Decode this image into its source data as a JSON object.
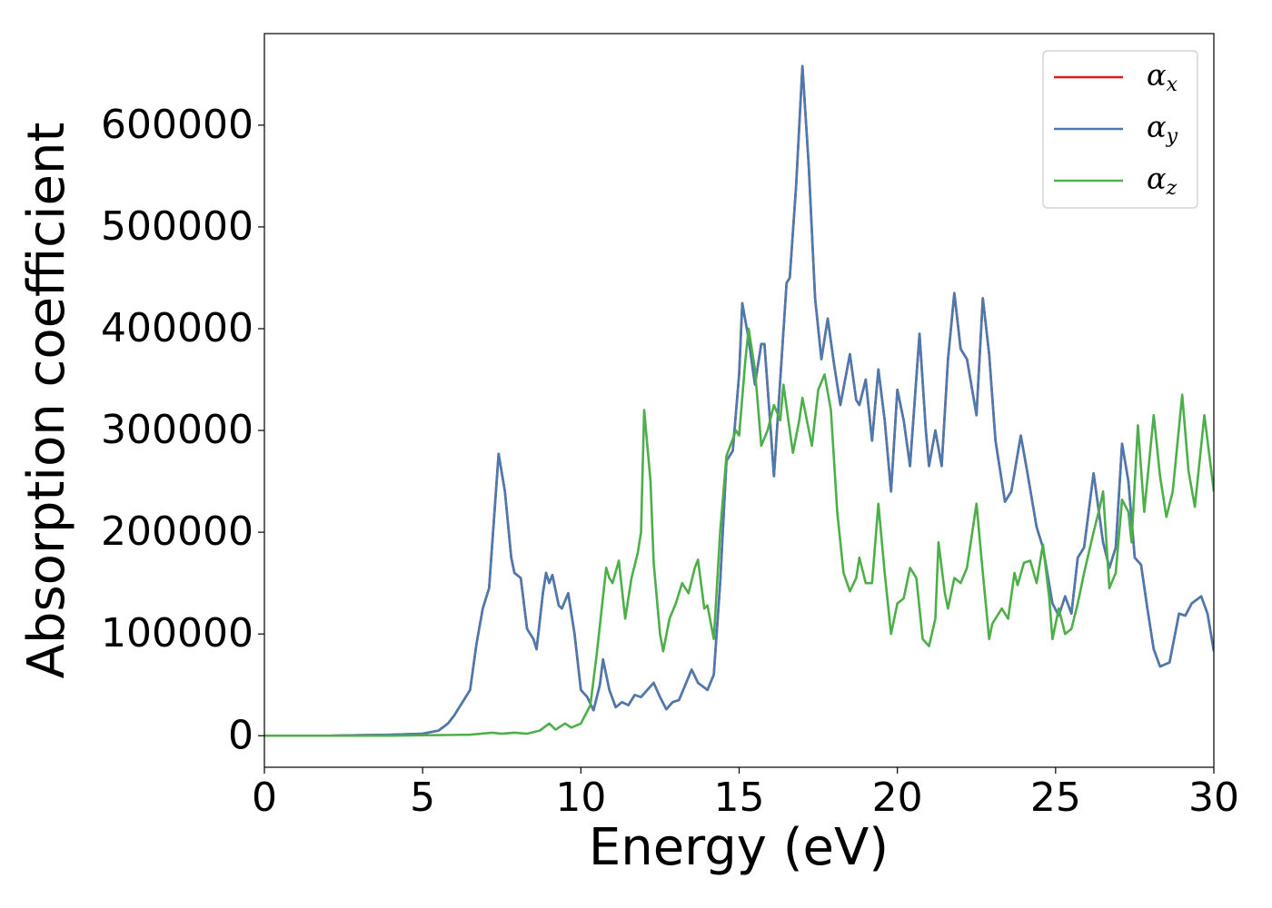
{
  "chart_data": {
    "type": "line",
    "x_label": "Energy (eV)",
    "y_label": "Absorption coefficient",
    "xlim": [
      0,
      30
    ],
    "xticks": [
      0,
      5,
      10,
      15,
      20,
      25,
      30
    ],
    "ylim": [
      -31000,
      690000
    ],
    "yticks": [
      0,
      100000,
      200000,
      300000,
      400000,
      500000,
      600000
    ],
    "grid": false,
    "legend": "upper right",
    "series": [
      {
        "name": "αx",
        "color": "#e41a1c",
        "x": [
          0,
          1,
          2,
          3,
          4,
          5,
          5.5,
          5.8,
          6.0,
          6.3,
          6.5,
          6.7,
          6.9,
          7.1,
          7.4,
          7.6,
          7.8,
          7.9,
          8.1,
          8.3,
          8.5,
          8.6,
          8.8,
          8.9,
          9.0,
          9.1,
          9.3,
          9.4,
          9.6,
          9.8,
          10.0,
          10.2,
          10.4,
          10.6,
          10.7,
          10.9,
          11.1,
          11.3,
          11.5,
          11.7,
          11.9,
          12.1,
          12.3,
          12.5,
          12.7,
          12.9,
          13.1,
          13.3,
          13.5,
          13.7,
          14.0,
          14.2,
          14.4,
          14.6,
          14.8,
          15.0,
          15.1,
          15.3,
          15.5,
          15.7,
          15.8,
          16.0,
          16.1,
          16.3,
          16.5,
          16.6,
          16.8,
          17.0,
          17.2,
          17.4,
          17.6,
          17.8,
          18.0,
          18.2,
          18.5,
          18.7,
          18.8,
          19.0,
          19.2,
          19.4,
          19.6,
          19.8,
          20.0,
          20.2,
          20.4,
          20.7,
          20.9,
          21.0,
          21.2,
          21.4,
          21.6,
          21.8,
          22.0,
          22.2,
          22.5,
          22.7,
          22.9,
          23.1,
          23.4,
          23.6,
          23.9,
          24.1,
          24.4,
          24.6,
          24.9,
          25.1,
          25.3,
          25.5,
          25.7,
          25.9,
          26.2,
          26.5,
          26.7,
          26.9,
          27.1,
          27.3,
          27.5,
          27.7,
          27.9,
          28.1,
          28.3,
          28.6,
          28.9,
          29.1,
          29.3,
          29.6,
          29.8,
          30.0
        ],
        "values": [
          0,
          0,
          0,
          500,
          1000,
          2000,
          5000,
          12000,
          20000,
          35000,
          45000,
          90000,
          125000,
          145000,
          277000,
          240000,
          175000,
          160000,
          155000,
          105000,
          95000,
          85000,
          140000,
          160000,
          150000,
          158000,
          128000,
          125000,
          140000,
          100000,
          45000,
          38000,
          25000,
          50000,
          75000,
          45000,
          28000,
          33000,
          30000,
          40000,
          38000,
          45000,
          52000,
          38000,
          26000,
          33000,
          35000,
          50000,
          65000,
          52000,
          45000,
          60000,
          150000,
          270000,
          280000,
          355000,
          425000,
          390000,
          345000,
          385000,
          385000,
          300000,
          255000,
          350000,
          445000,
          450000,
          540000,
          658000,
          560000,
          430000,
          370000,
          410000,
          365000,
          325000,
          375000,
          330000,
          325000,
          350000,
          290000,
          360000,
          310000,
          240000,
          340000,
          310000,
          265000,
          395000,
          300000,
          265000,
          300000,
          265000,
          370000,
          435000,
          380000,
          370000,
          315000,
          430000,
          375000,
          290000,
          230000,
          240000,
          295000,
          260000,
          205000,
          185000,
          130000,
          118000,
          137000,
          120000,
          175000,
          185000,
          258000,
          190000,
          165000,
          185000,
          287000,
          250000,
          175000,
          168000,
          125000,
          85000,
          68000,
          72000,
          120000,
          118000,
          130000,
          137000,
          120000,
          83000
        ]
      },
      {
        "name": "αy",
        "color": "#4a7ab0",
        "x": [
          0,
          1,
          2,
          3,
          4,
          5,
          5.5,
          5.8,
          6.0,
          6.3,
          6.5,
          6.7,
          6.9,
          7.1,
          7.4,
          7.6,
          7.8,
          7.9,
          8.1,
          8.3,
          8.5,
          8.6,
          8.8,
          8.9,
          9.0,
          9.1,
          9.3,
          9.4,
          9.6,
          9.8,
          10.0,
          10.2,
          10.4,
          10.6,
          10.7,
          10.9,
          11.1,
          11.3,
          11.5,
          11.7,
          11.9,
          12.1,
          12.3,
          12.5,
          12.7,
          12.9,
          13.1,
          13.3,
          13.5,
          13.7,
          14.0,
          14.2,
          14.4,
          14.6,
          14.8,
          15.0,
          15.1,
          15.3,
          15.5,
          15.7,
          15.8,
          16.0,
          16.1,
          16.3,
          16.5,
          16.6,
          16.8,
          17.0,
          17.2,
          17.4,
          17.6,
          17.8,
          18.0,
          18.2,
          18.5,
          18.7,
          18.8,
          19.0,
          19.2,
          19.4,
          19.6,
          19.8,
          20.0,
          20.2,
          20.4,
          20.7,
          20.9,
          21.0,
          21.2,
          21.4,
          21.6,
          21.8,
          22.0,
          22.2,
          22.5,
          22.7,
          22.9,
          23.1,
          23.4,
          23.6,
          23.9,
          24.1,
          24.4,
          24.6,
          24.9,
          25.1,
          25.3,
          25.5,
          25.7,
          25.9,
          26.2,
          26.5,
          26.7,
          26.9,
          27.1,
          27.3,
          27.5,
          27.7,
          27.9,
          28.1,
          28.3,
          28.6,
          28.9,
          29.1,
          29.3,
          29.6,
          29.8,
          30.0
        ],
        "values": [
          0,
          0,
          0,
          500,
          1000,
          2000,
          5000,
          12000,
          20000,
          35000,
          45000,
          90000,
          125000,
          145000,
          277000,
          240000,
          175000,
          160000,
          155000,
          105000,
          95000,
          85000,
          140000,
          160000,
          150000,
          158000,
          128000,
          125000,
          140000,
          100000,
          45000,
          38000,
          25000,
          50000,
          75000,
          45000,
          28000,
          33000,
          30000,
          40000,
          38000,
          45000,
          52000,
          38000,
          26000,
          33000,
          35000,
          50000,
          65000,
          52000,
          45000,
          60000,
          150000,
          270000,
          280000,
          355000,
          425000,
          390000,
          345000,
          385000,
          385000,
          300000,
          255000,
          350000,
          445000,
          450000,
          540000,
          658000,
          560000,
          430000,
          370000,
          410000,
          365000,
          325000,
          375000,
          330000,
          325000,
          350000,
          290000,
          360000,
          310000,
          240000,
          340000,
          310000,
          265000,
          395000,
          300000,
          265000,
          300000,
          265000,
          370000,
          435000,
          380000,
          370000,
          315000,
          430000,
          375000,
          290000,
          230000,
          240000,
          295000,
          260000,
          205000,
          185000,
          130000,
          118000,
          137000,
          120000,
          175000,
          185000,
          258000,
          190000,
          165000,
          185000,
          287000,
          250000,
          175000,
          168000,
          125000,
          85000,
          68000,
          72000,
          120000,
          118000,
          130000,
          137000,
          120000,
          83000
        ]
      },
      {
        "name": "αz",
        "color": "#4daf4a",
        "x": [
          0,
          2,
          4,
          6.5,
          7.2,
          7.5,
          7.9,
          8.3,
          8.7,
          9.0,
          9.2,
          9.5,
          9.7,
          10.0,
          10.3,
          10.5,
          10.8,
          10.9,
          11.0,
          11.2,
          11.4,
          11.6,
          11.8,
          11.9,
          12.0,
          12.2,
          12.3,
          12.5,
          12.6,
          12.8,
          13.0,
          13.2,
          13.4,
          13.6,
          13.7,
          13.9,
          14.0,
          14.2,
          14.4,
          14.6,
          14.9,
          15.0,
          15.2,
          15.3,
          15.5,
          15.7,
          15.9,
          16.1,
          16.3,
          16.4,
          16.6,
          16.7,
          16.9,
          17.0,
          17.3,
          17.5,
          17.7,
          17.9,
          18.1,
          18.3,
          18.5,
          18.7,
          18.8,
          19.0,
          19.2,
          19.4,
          19.6,
          19.8,
          20.0,
          20.2,
          20.4,
          20.6,
          20.8,
          21.0,
          21.2,
          21.3,
          21.5,
          21.6,
          21.8,
          22.0,
          22.2,
          22.5,
          22.7,
          22.9,
          23.0,
          23.3,
          23.5,
          23.7,
          23.8,
          24.0,
          24.2,
          24.4,
          24.6,
          24.8,
          24.9,
          25.1,
          25.3,
          25.5,
          25.7,
          25.9,
          26.2,
          26.4,
          26.5,
          26.7,
          26.9,
          27.1,
          27.3,
          27.4,
          27.6,
          27.8,
          28.1,
          28.3,
          28.5,
          28.7,
          29.0,
          29.2,
          29.4,
          29.7,
          30.0
        ],
        "values": [
          0,
          0,
          0,
          1000,
          3000,
          2000,
          3000,
          2000,
          5000,
          12000,
          6000,
          12000,
          8000,
          12000,
          30000,
          80000,
          165000,
          155000,
          150000,
          172000,
          115000,
          155000,
          180000,
          200000,
          320000,
          250000,
          170000,
          100000,
          83000,
          115000,
          130000,
          150000,
          140000,
          165000,
          173000,
          125000,
          128000,
          95000,
          200000,
          275000,
          300000,
          295000,
          370000,
          400000,
          360000,
          285000,
          300000,
          325000,
          310000,
          345000,
          300000,
          278000,
          310000,
          332000,
          285000,
          340000,
          355000,
          320000,
          220000,
          160000,
          142000,
          155000,
          175000,
          150000,
          150000,
          228000,
          160000,
          100000,
          130000,
          135000,
          165000,
          155000,
          95000,
          88000,
          115000,
          190000,
          140000,
          125000,
          155000,
          150000,
          165000,
          228000,
          160000,
          95000,
          110000,
          125000,
          115000,
          160000,
          148000,
          170000,
          172000,
          150000,
          188000,
          135000,
          95000,
          125000,
          100000,
          105000,
          130000,
          160000,
          200000,
          225000,
          240000,
          145000,
          160000,
          232000,
          220000,
          190000,
          305000,
          220000,
          315000,
          255000,
          215000,
          240000,
          335000,
          260000,
          225000,
          315000,
          240000
        ]
      }
    ]
  }
}
